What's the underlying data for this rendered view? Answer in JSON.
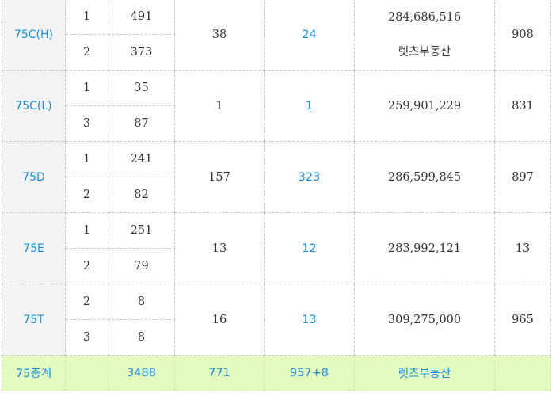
{
  "rows": [
    {
      "type": "75C(H)",
      "sub": [
        {
          "n": "1",
          "v": "491"
        },
        {
          "n": "2",
          "v": "373"
        }
      ],
      "c4": "38",
      "c5": "24",
      "price": "284,686,516",
      "price_note": "렛츠부동산",
      "c7": "908"
    },
    {
      "type": "75C(L)",
      "sub": [
        {
          "n": "1",
          "v": "35"
        },
        {
          "n": "3",
          "v": "87"
        }
      ],
      "c4": "1",
      "c5": "1",
      "price": "259,901,229",
      "c7": "831"
    },
    {
      "type": "75D",
      "sub": [
        {
          "n": "1",
          "v": "241"
        },
        {
          "n": "2",
          "v": "82"
        }
      ],
      "c4": "157",
      "c5": "323",
      "price": "286,599,845",
      "c7": "897"
    },
    {
      "type": "75E",
      "sub": [
        {
          "n": "1",
          "v": "251"
        },
        {
          "n": "2",
          "v": "79"
        }
      ],
      "c4": "13",
      "c5": "12",
      "price": "283,992,121",
      "c7": "13"
    },
    {
      "type": "75T",
      "sub": [
        {
          "n": "2",
          "v": "8"
        },
        {
          "n": "3",
          "v": "8"
        }
      ],
      "c4": "16",
      "c5": "13",
      "price": "309,275,000",
      "c7": "965"
    }
  ],
  "total": {
    "label": "75총계",
    "c2": "",
    "c3": "3488",
    "c4": "771",
    "c5": "957+8",
    "c6": "렛츠부동산",
    "c7": ""
  },
  "colors": {
    "accent_blue": "#1a8fd8",
    "type_bg": "#f3f3f3",
    "total_bg": "#e4fbc0"
  }
}
